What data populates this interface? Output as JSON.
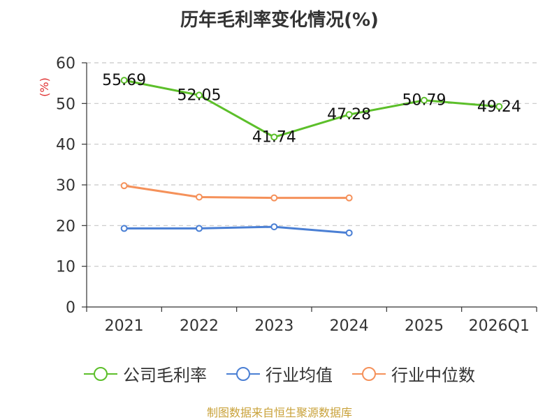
{
  "chart_data": {
    "type": "line",
    "title": "历年毛利率变化情况(%)",
    "ylabel": "(%)",
    "categories": [
      "2021",
      "2022",
      "2023",
      "2024",
      "2025",
      "2026Q1"
    ],
    "ylim": [
      0,
      60
    ],
    "yticks": [
      0,
      10,
      20,
      30,
      40,
      50,
      60
    ],
    "grid": true,
    "legend_position": "bottom",
    "series": [
      {
        "name": "公司毛利率",
        "color": "#5cbf2a",
        "values": [
          55.69,
          52.05,
          41.74,
          47.28,
          50.79,
          49.24
        ],
        "labels": [
          "55.69",
          "52.05",
          "41.74",
          "47.28",
          "50.79",
          "49.24"
        ]
      },
      {
        "name": "行业均值",
        "color": "#4a7fd4",
        "values": [
          19.3,
          19.3,
          19.7,
          18.2,
          null,
          null
        ]
      },
      {
        "name": "行业中位数",
        "color": "#f5915a",
        "values": [
          29.8,
          27.0,
          26.8,
          26.8,
          null,
          null
        ]
      }
    ]
  },
  "source": "制图数据来自恒生聚源数据库"
}
